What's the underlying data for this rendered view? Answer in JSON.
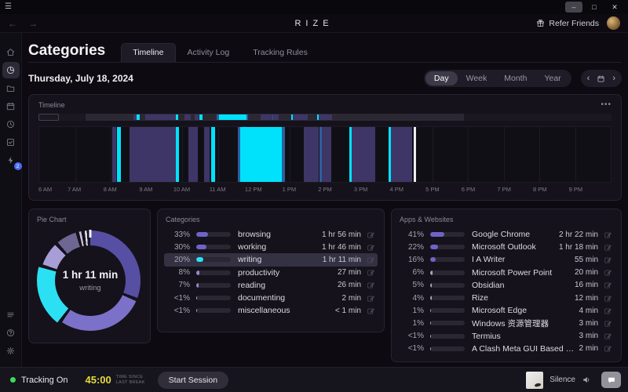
{
  "window": {
    "menu_icon": "hamburger-icon",
    "controls": {
      "minimize": "–",
      "maximize": "□",
      "close": "✕"
    }
  },
  "appbar": {
    "back": "←",
    "forward": "→",
    "logo": "RIZE",
    "refer_label": "Refer Friends"
  },
  "sidebar": {
    "top_items": [
      {
        "name": "home",
        "active": false
      },
      {
        "name": "categories",
        "active": true
      },
      {
        "name": "projects",
        "active": false
      },
      {
        "name": "calendar",
        "active": false
      },
      {
        "name": "sessions",
        "active": false
      },
      {
        "name": "tasks",
        "active": false
      },
      {
        "name": "notifications",
        "active": false,
        "badge": "2"
      }
    ],
    "bottom_items": [
      {
        "name": "menu",
        "active": false
      },
      {
        "name": "help",
        "active": false
      },
      {
        "name": "settings",
        "active": false
      }
    ]
  },
  "header": {
    "title": "Categories",
    "tabs": [
      {
        "label": "Timeline",
        "active": true
      },
      {
        "label": "Activity Log",
        "active": false
      },
      {
        "label": "Tracking Rules",
        "active": false
      }
    ],
    "date": "Thursday, July 18, 2024",
    "ranges": [
      {
        "label": "Day",
        "active": true
      },
      {
        "label": "Week",
        "active": false
      },
      {
        "label": "Month",
        "active": false
      },
      {
        "label": "Year",
        "active": false
      }
    ],
    "nav": {
      "prev": "‹",
      "next": "›"
    }
  },
  "timeline": {
    "label": "Timeline",
    "menu": "•••",
    "hours": [
      "6 AM",
      "7 AM",
      "8 AM",
      "9 AM",
      "10 AM",
      "11 AM",
      "12 PM",
      "1 PM",
      "2 PM",
      "3 PM",
      "4 PM",
      "5 PM",
      "6 PM",
      "7 PM",
      "8 PM",
      "9 PM"
    ],
    "span_hours": 16,
    "minimap_window": {
      "left_pct": 8.2,
      "width_pct": 66.1
    },
    "minimap_handle": {
      "left_pct": 0,
      "width_pct": 3.6
    },
    "segments": [
      {
        "s": 2.04,
        "e": 2.16,
        "c": "purple"
      },
      {
        "s": 2.17,
        "e": 2.29,
        "c": "cyan"
      },
      {
        "s": 2.52,
        "e": 3.82,
        "c": "purple"
      },
      {
        "s": 3.82,
        "e": 3.92,
        "c": "cyan"
      },
      {
        "s": 4.17,
        "e": 4.45,
        "c": "purple"
      },
      {
        "s": 4.62,
        "e": 4.77,
        "c": "purple"
      },
      {
        "s": 4.82,
        "e": 4.93,
        "c": "cyan"
      },
      {
        "s": 5.55,
        "e": 5.63,
        "c": "blue"
      },
      {
        "s": 5.63,
        "e": 6.8,
        "c": "cyan"
      },
      {
        "s": 6.8,
        "e": 6.88,
        "c": "blue"
      },
      {
        "s": 7.4,
        "e": 7.83,
        "c": "purple"
      },
      {
        "s": 7.85,
        "e": 7.91,
        "c": "blue"
      },
      {
        "s": 7.91,
        "e": 8.17,
        "c": "purple"
      },
      {
        "s": 8.69,
        "e": 8.75,
        "c": "cyan"
      },
      {
        "s": 8.75,
        "e": 9.4,
        "c": "purple"
      },
      {
        "s": 9.78,
        "e": 9.85,
        "c": "cyan"
      },
      {
        "s": 9.85,
        "e": 10.43,
        "c": "purple"
      },
      {
        "s": 10.49,
        "e": 10.56,
        "c": "white"
      }
    ],
    "colors": {
      "purple": "#3e3667",
      "cyan": "#00e2fb",
      "blue": "#2e5f9e",
      "white": "#eeecf2"
    }
  },
  "chart_data": {
    "type": "pie",
    "title": "Pie Chart",
    "center_value": "1 hr 11 min",
    "center_label": "writing",
    "labels": [
      "browsing",
      "working",
      "writing",
      "productivity",
      "reading",
      "documenting",
      "miscellaneous"
    ],
    "values": [
      33,
      30,
      20,
      8,
      7,
      0.75,
      0.75
    ],
    "colors": [
      "#574fa4",
      "#7b71c9",
      "#2ce0f4",
      "#a79ed8",
      "#6e6794",
      "#c7c3dc",
      "#dbd8ea"
    ],
    "gap_color": "#15121b",
    "highlight_slice": "writing"
  },
  "categories": {
    "label": "Categories",
    "rows": [
      {
        "pct": "33%",
        "pct_num": 33,
        "name": "browsing",
        "time": "1 hr 56 min",
        "fill": "#6e63c8",
        "hl": false
      },
      {
        "pct": "30%",
        "pct_num": 30,
        "name": "working",
        "time": "1 hr 46 min",
        "fill": "#6e63c8",
        "hl": false
      },
      {
        "pct": "20%",
        "pct_num": 20,
        "name": "writing",
        "time": "1 hr 11 min",
        "fill": "#2ce0f4",
        "hl": true
      },
      {
        "pct": "8%",
        "pct_num": 8,
        "name": "productivity",
        "time": "27 min",
        "fill": "#938bc9",
        "hl": false
      },
      {
        "pct": "7%",
        "pct_num": 7,
        "name": "reading",
        "time": "26 min",
        "fill": "#938bc9",
        "hl": false
      },
      {
        "pct": "<1%",
        "pct_num": 1.5,
        "name": "documenting",
        "time": "2 min",
        "fill": "#b7b4c6",
        "hl": false
      },
      {
        "pct": "<1%",
        "pct_num": 1.5,
        "name": "miscellaneous",
        "time": "< 1 min",
        "fill": "#b7b4c6",
        "hl": false
      }
    ]
  },
  "apps": {
    "label": "Apps & Websites",
    "rows": [
      {
        "pct": "41%",
        "pct_num": 41,
        "name": "Google Chrome",
        "time": "2 hr 22 min",
        "fill": "#6e63c8",
        "hl": false
      },
      {
        "pct": "22%",
        "pct_num": 22,
        "name": "Microsoft Outlook",
        "time": "1 hr 18 min",
        "fill": "#6e63c8",
        "hl": false
      },
      {
        "pct": "16%",
        "pct_num": 16,
        "name": "I A Writer",
        "time": "55 min",
        "fill": "#6e63c8",
        "hl": false
      },
      {
        "pct": "6%",
        "pct_num": 6,
        "name": "Microsoft Power Point",
        "time": "20 min",
        "fill": "#a9a5bb",
        "hl": false
      },
      {
        "pct": "5%",
        "pct_num": 5,
        "name": "Obsidian",
        "time": "16 min",
        "fill": "#a9a5bb",
        "hl": false
      },
      {
        "pct": "4%",
        "pct_num": 4,
        "name": "Rize",
        "time": "12 min",
        "fill": "#a9a5bb",
        "hl": false
      },
      {
        "pct": "1%",
        "pct_num": 1.5,
        "name": "Microsoft Edge",
        "time": "4 min",
        "fill": "#a9a5bb",
        "hl": false
      },
      {
        "pct": "1%",
        "pct_num": 1.5,
        "name": "Windows 资源管理器",
        "time": "3 min",
        "fill": "#a9a5bb",
        "hl": false
      },
      {
        "pct": "<1%",
        "pct_num": 1.5,
        "name": "Termius",
        "time": "3 min",
        "fill": "#a9a5bb",
        "hl": false
      },
      {
        "pct": "<1%",
        "pct_num": 1.5,
        "name": "A Clash Meta GUI Based On Ta...",
        "time": "2 min",
        "fill": "#a9a5bb",
        "hl": false
      }
    ]
  },
  "footer": {
    "tracking_label": "Tracking On",
    "timer": "45:00",
    "timer_caption_line1": "TIME SINCE",
    "timer_caption_line2": "LAST BREAK",
    "start_button": "Start Session",
    "media_title": "Silence",
    "status_color": "#3cdc5a"
  }
}
